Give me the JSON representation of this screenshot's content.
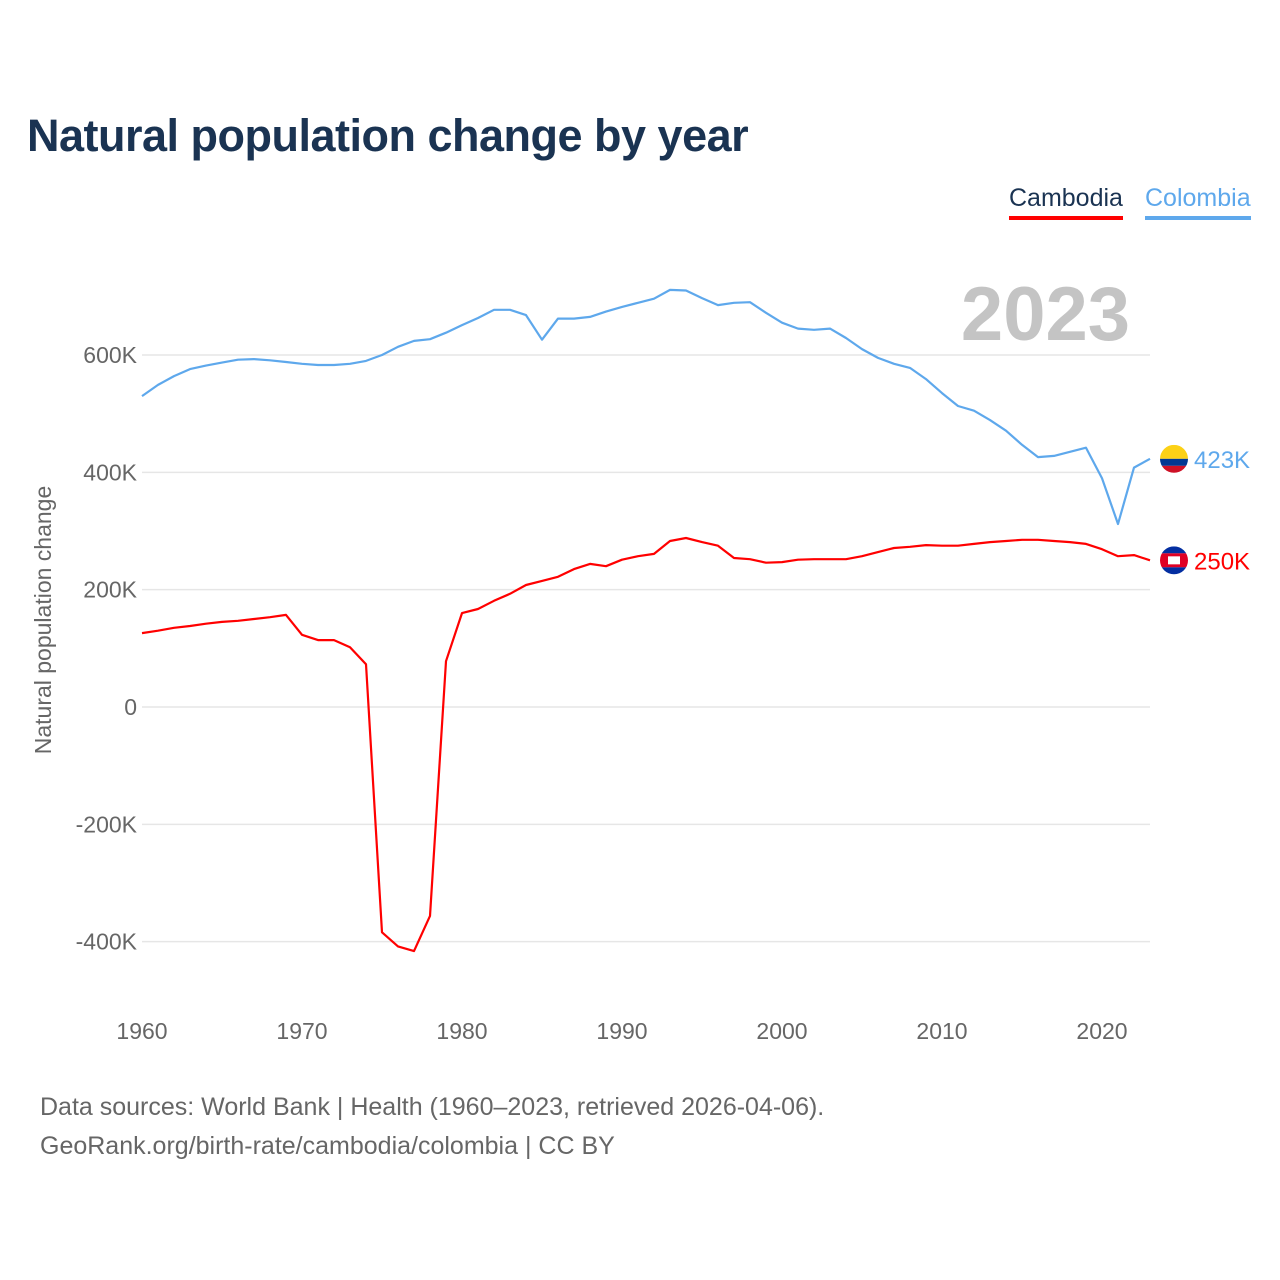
{
  "chart_data": {
    "type": "line",
    "title": "Natural population change by year",
    "xlabel": "",
    "ylabel": "Natural population change",
    "xlim": [
      1960,
      2023
    ],
    "ylim": [
      -500000,
      750000
    ],
    "yticks": [
      600000,
      400000,
      200000,
      0,
      -200000,
      -400000
    ],
    "ytick_labels": [
      "600K",
      "400K",
      "200K",
      "0",
      "-200K",
      "-400K"
    ],
    "xticks": [
      1960,
      1970,
      1980,
      1990,
      2000,
      2010,
      2020
    ],
    "xtick_labels": [
      "1960",
      "1970",
      "1980",
      "1990",
      "2000",
      "2010",
      "2020"
    ],
    "grid": true,
    "legend_position": "top-right",
    "year_watermark": "2023",
    "x_start": 1960,
    "series": [
      {
        "name": "Cambodia",
        "color": "#ff0000",
        "end_label": "250K",
        "flag": "cambodia-flag-icon",
        "values": [
          126000,
          130000,
          135000,
          138000,
          142000,
          145000,
          147000,
          150000,
          153000,
          157000,
          123000,
          114000,
          114000,
          102000,
          73000,
          -384000,
          -408000,
          -416000,
          -356000,
          78000,
          160000,
          167000,
          181000,
          193000,
          208000,
          215000,
          222000,
          235000,
          244000,
          240000,
          251000,
          257000,
          261000,
          283000,
          288000,
          281000,
          275000,
          254000,
          252000,
          246000,
          247000,
          251000,
          252000,
          252000,
          252000,
          257000,
          264000,
          271000,
          273000,
          276000,
          275000,
          275000,
          278000,
          281000,
          283000,
          285000,
          285000,
          283000,
          281000,
          278000,
          269000,
          257000,
          259000,
          250000
        ]
      },
      {
        "name": "Colombia",
        "color": "#5ea8ec",
        "end_label": "423K",
        "flag": "colombia-flag-icon",
        "values": [
          530000,
          549000,
          564000,
          576000,
          582000,
          587000,
          592000,
          593000,
          591000,
          588000,
          585000,
          583000,
          583000,
          585000,
          590000,
          600000,
          614000,
          624000,
          627000,
          638000,
          651000,
          663000,
          677000,
          677000,
          668000,
          626000,
          662000,
          662000,
          665000,
          674000,
          682000,
          689000,
          696000,
          711000,
          710000,
          697000,
          685000,
          689000,
          690000,
          672000,
          655000,
          645000,
          643000,
          645000,
          629000,
          610000,
          595000,
          585000,
          578000,
          559000,
          535000,
          513000,
          505000,
          489000,
          471000,
          447000,
          426000,
          428000,
          435000,
          442000,
          390000,
          312000,
          408000,
          423000
        ]
      }
    ]
  },
  "footer": {
    "line1": "Data sources: World Bank | Health (1960–2023, retrieved 2026-04-06).",
    "line2": "GeoRank.org/birth-rate/cambodia/colombia | CC BY"
  }
}
